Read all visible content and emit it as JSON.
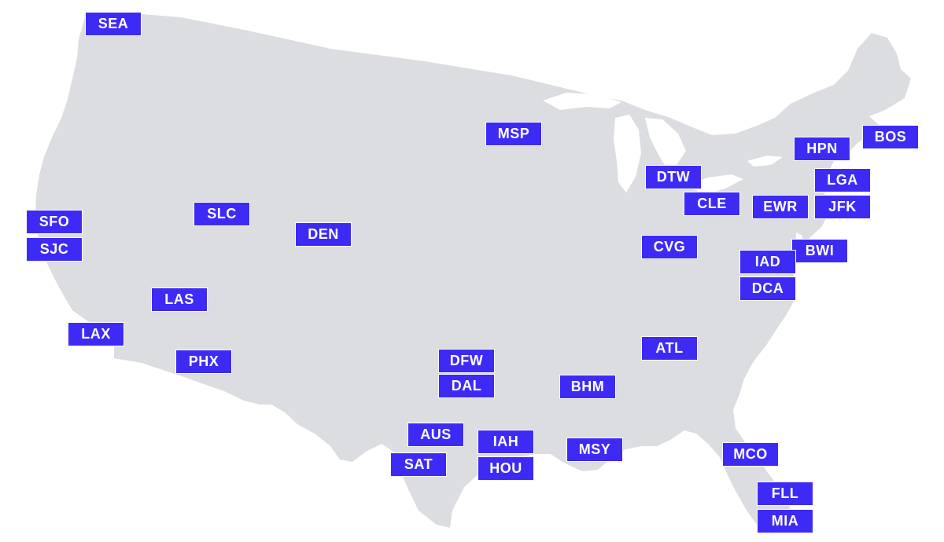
{
  "map": {
    "land_color": "#dcdde0",
    "label_color": "#3d2bf5",
    "label_text_color": "#ffffff"
  },
  "airports": [
    {
      "code": "SEA"
    },
    {
      "code": "MSP"
    },
    {
      "code": "BOS"
    },
    {
      "code": "HPN"
    },
    {
      "code": "DTW"
    },
    {
      "code": "LGA"
    },
    {
      "code": "CLE"
    },
    {
      "code": "EWR"
    },
    {
      "code": "JFK"
    },
    {
      "code": "SFO"
    },
    {
      "code": "SJC"
    },
    {
      "code": "SLC"
    },
    {
      "code": "DEN"
    },
    {
      "code": "CVG"
    },
    {
      "code": "BWI"
    },
    {
      "code": "IAD"
    },
    {
      "code": "DCA"
    },
    {
      "code": "LAS"
    },
    {
      "code": "LAX"
    },
    {
      "code": "PHX"
    },
    {
      "code": "ATL"
    },
    {
      "code": "DFW"
    },
    {
      "code": "DAL"
    },
    {
      "code": "BHM"
    },
    {
      "code": "AUS"
    },
    {
      "code": "IAH"
    },
    {
      "code": "SAT"
    },
    {
      "code": "HOU"
    },
    {
      "code": "MSY"
    },
    {
      "code": "MCO"
    },
    {
      "code": "FLL"
    },
    {
      "code": "MIA"
    }
  ]
}
